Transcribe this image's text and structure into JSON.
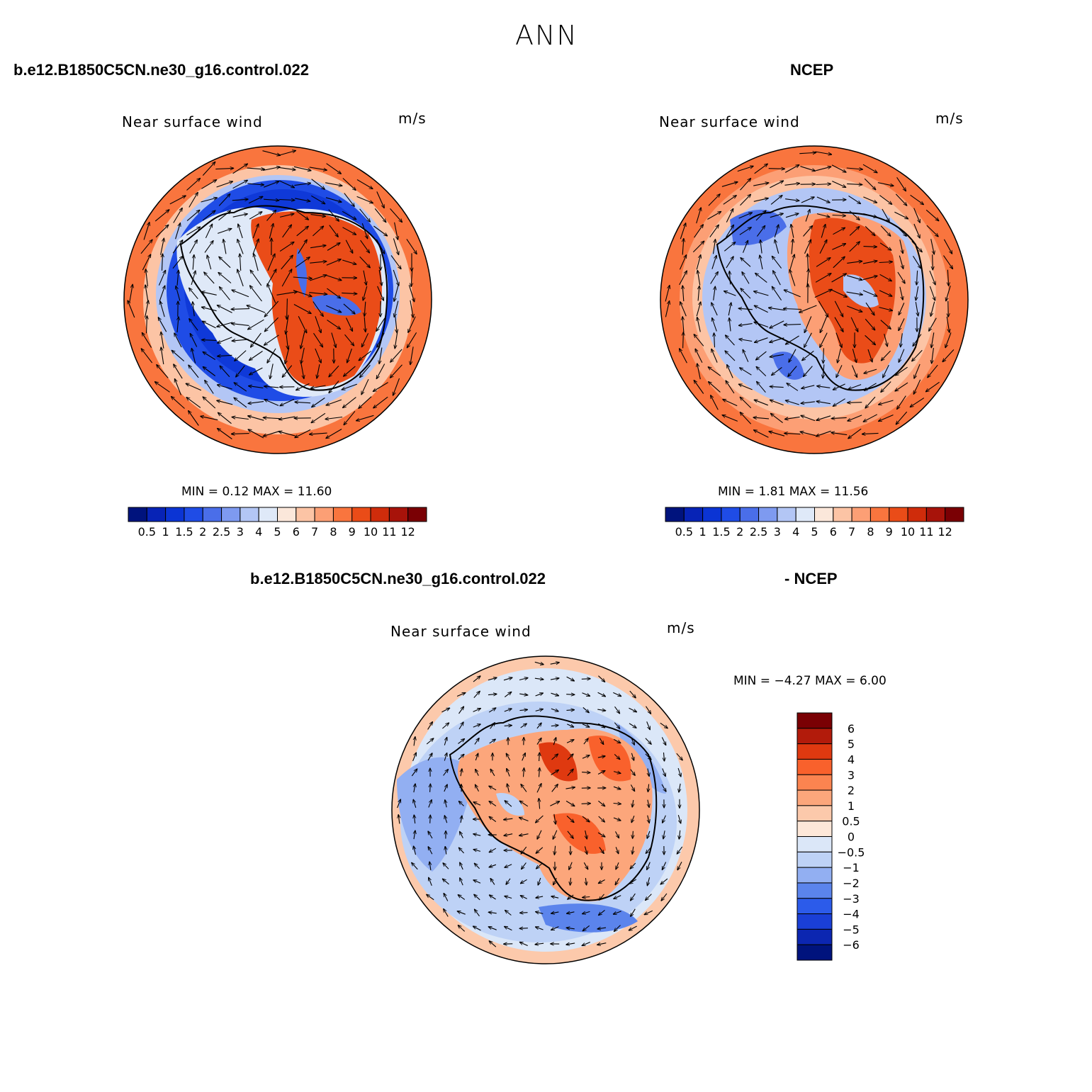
{
  "header": {
    "title": "ANN",
    "case_left": "b.e12.B1850C5CN.ne30_g16.control.022",
    "case_right": "NCEP",
    "diff_case_left": "b.e12.B1850C5CN.ne30_g16.control.022",
    "diff_case_right": "- NCEP"
  },
  "panels": [
    {
      "id": "model",
      "title": "Near surface wind",
      "units": "m/s",
      "stats": "MIN =    0.12  MAX =   11.60"
    },
    {
      "id": "obs",
      "title": "Near surface wind",
      "units": "m/s",
      "stats": "MIN =    1.81  MAX =   11.56"
    },
    {
      "id": "diff",
      "title": "Near surface wind",
      "units": "m/s",
      "stats": "MIN =  −4.27  MAX =    6.00"
    }
  ],
  "colorbar_abs": {
    "labels": [
      "0.5",
      "1",
      "1.5",
      "2",
      "2.5",
      "3",
      "4",
      "5",
      "6",
      "7",
      "8",
      "9",
      "10",
      "11",
      "12"
    ],
    "colors": [
      "#00137d",
      "#0723b6",
      "#0b34d4",
      "#1f4ce6",
      "#4a6ee9",
      "#7e9af0",
      "#b3c6f5",
      "#dfe9f8",
      "#fbe7da",
      "#fcc4a5",
      "#fc9f75",
      "#f9753e",
      "#ea4c18",
      "#cf2c0b",
      "#a7130a",
      "#7a0004"
    ]
  },
  "colorbar_diff": {
    "labels": [
      "6",
      "5",
      "4",
      "3",
      "2",
      "1",
      "0.5",
      "0",
      "−0.5",
      "−1",
      "−2",
      "−3",
      "−4",
      "−5",
      "−6"
    ],
    "colors": [
      "#7a0004",
      "#b21b0b",
      "#df3910",
      "#f9612c",
      "#fb8450",
      "#fca67b",
      "#fcc9ab",
      "#fde7d8",
      "#dbe7f8",
      "#bed2f6",
      "#92aff2",
      "#5b84ec",
      "#2c5bea",
      "#1a3fd6",
      "#0c26b1",
      "#00137d"
    ]
  },
  "map_colors": {
    "outer_warm": "#f9753e",
    "ring_warm": "#fcc4a5",
    "cool_light": "#b3c6f5",
    "cool_mid": "#4a6ee9",
    "cool_dark": "#0b34d4",
    "land_warm": "#ea4c18"
  }
}
